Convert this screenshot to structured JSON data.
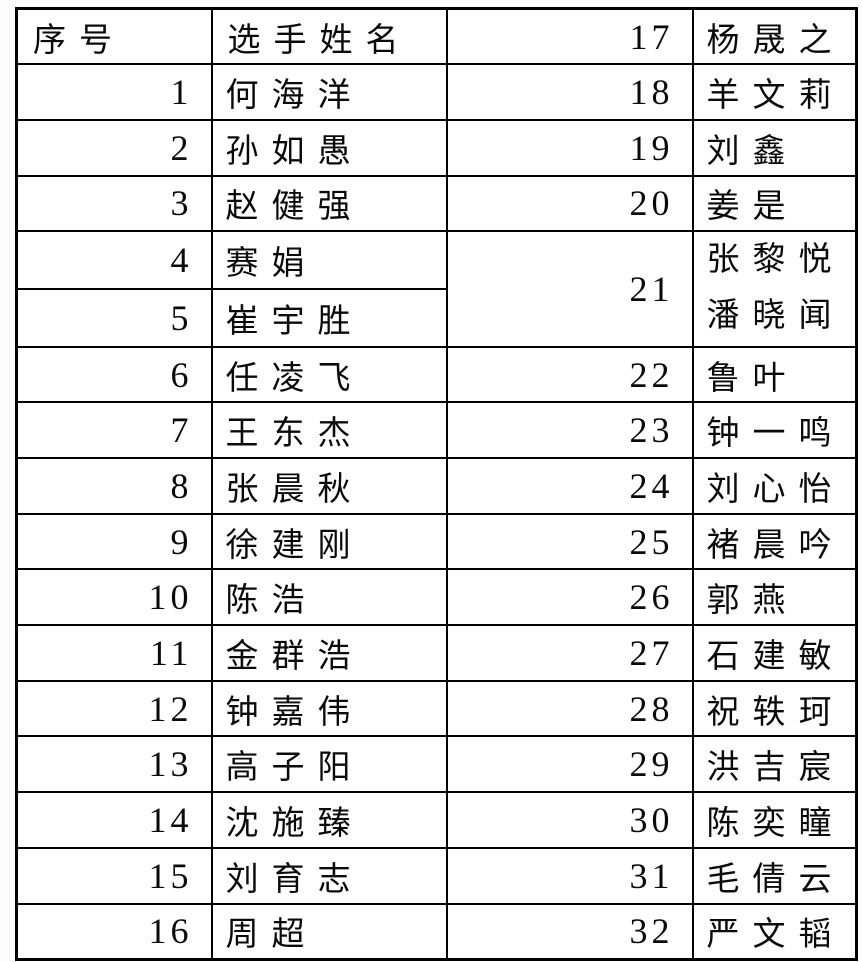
{
  "page": {
    "background_color": "#ffffff",
    "border_color": "#000000",
    "text_color": "#0a0a0a"
  },
  "table": {
    "header": {
      "no_label": "序号",
      "name_label": "选手姓名"
    },
    "bands": [
      {
        "c1": "序号",
        "c1_header": true,
        "c2": "选手姓名",
        "c2_header": true,
        "c3": "17",
        "c4": "杨晟之"
      },
      {
        "c1": "1",
        "c2": "何海洋",
        "c3": "18",
        "c4": "羊文莉"
      },
      {
        "c1": "2",
        "c2": "孙如愚",
        "c3": "19",
        "c4": "刘鑫"
      },
      {
        "c1": "3",
        "c2": "赵健强",
        "c3": "20",
        "c4": "姜是"
      },
      {
        "c1": "4",
        "c2": "赛娟",
        "c3": "21",
        "c3_rowspan": 2,
        "c4": [
          "张黎悦",
          "潘晓闻"
        ],
        "c4_rowspan": 2
      },
      {
        "c1": "5",
        "c2": "崔宇胜",
        "c3": null,
        "c4": null
      },
      {
        "c1": "6",
        "c2": "任凌飞",
        "c3": "22",
        "c4": "鲁叶"
      },
      {
        "c1": "7",
        "c2": "王东杰",
        "c3": "23",
        "c4": "钟一鸣"
      },
      {
        "c1": "8",
        "c2": "张晨秋",
        "c3": "24",
        "c4": "刘心怡"
      },
      {
        "c1": "9",
        "c2": "徐建刚",
        "c3": "25",
        "c4": "褚晨吟"
      },
      {
        "c1": "10",
        "c2": "陈浩",
        "c3": "26",
        "c4": "郭燕"
      },
      {
        "c1": "11",
        "c2": "金群浩",
        "c3": "27",
        "c4": "石建敏"
      },
      {
        "c1": "12",
        "c2": "钟嘉伟",
        "c3": "28",
        "c4": "祝轶珂"
      },
      {
        "c1": "13",
        "c2": "高子阳",
        "c3": "29",
        "c4": "洪吉宸"
      },
      {
        "c1": "14",
        "c2": "沈施臻",
        "c3": "30",
        "c4": "陈奕瞳"
      },
      {
        "c1": "15",
        "c2": "刘育志",
        "c3": "31",
        "c4": "毛倩云"
      },
      {
        "c1": "16",
        "c2": "周超",
        "c3": "32",
        "c4": "严文韬"
      }
    ]
  }
}
